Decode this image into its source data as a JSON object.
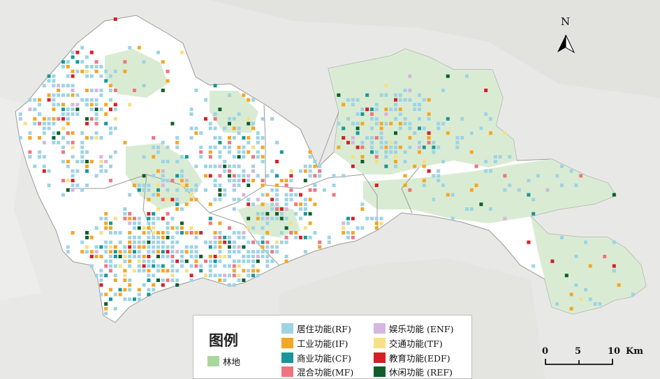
{
  "legend": {
    "title": "图例",
    "forest": {
      "label": "林地",
      "color": "#a8d8a0"
    },
    "items": [
      {
        "key": "RF",
        "label": "居住功能(RF)",
        "color": "#9ed3e6"
      },
      {
        "key": "IF",
        "label": "工业功能(IF)",
        "color": "#f5a623"
      },
      {
        "key": "CF",
        "label": "商业功能(CF)",
        "color": "#17979a"
      },
      {
        "key": "MF",
        "label": "混合功能(MF)",
        "color": "#ee7580"
      },
      {
        "key": "ENF",
        "label": "娱乐功能 (ENF)",
        "color": "#d5b6e0"
      },
      {
        "key": "TF",
        "label": "交通功能(TF)",
        "color": "#f7e083"
      },
      {
        "key": "EDF",
        "label": "教育功能(EDF)",
        "color": "#d42027"
      },
      {
        "key": "REF",
        "label": "休闲功能 (REF)",
        "color": "#0f5e2c"
      }
    ]
  },
  "scale": {
    "ticks": [
      "0",
      "5",
      "10"
    ],
    "unit": "Km"
  },
  "north": {
    "label": "N"
  },
  "colors": {
    "background": "#e8e8e6",
    "city_land": "#ffffff",
    "forest": "#d9ecd3",
    "water": "#f2f2f0",
    "district_border": "#9a9a9a"
  }
}
